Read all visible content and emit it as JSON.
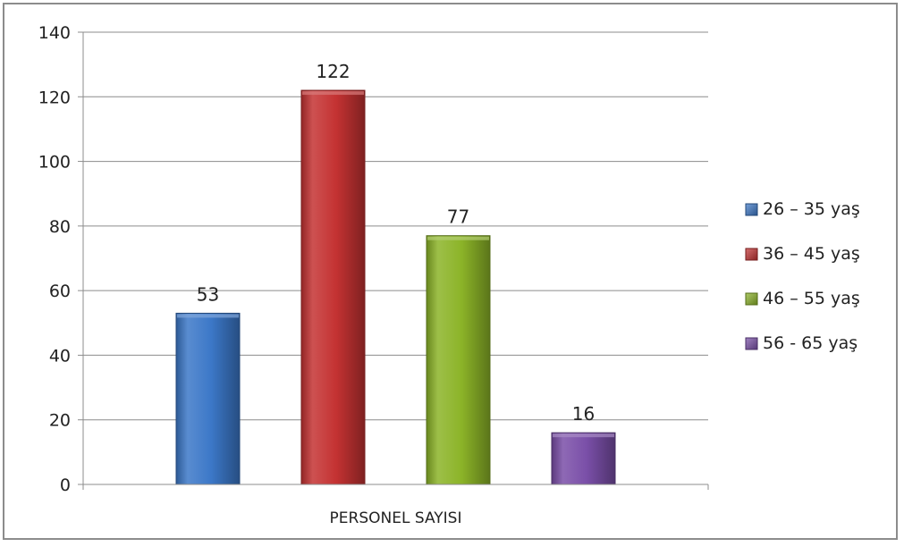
{
  "chart_data": {
    "type": "bar",
    "categories": [
      "PERSONEL SAYISI"
    ],
    "series": [
      {
        "name": "26 – 35 yaş",
        "values": [
          53
        ],
        "color": "#3c78c8"
      },
      {
        "name": "36 – 45 yaş",
        "values": [
          122
        ],
        "color": "#c43232"
      },
      {
        "name": "46 – 55 yaş",
        "values": [
          77
        ],
        "color": "#8cb428"
      },
      {
        "name": "56 - 65 yaş",
        "values": [
          16
        ],
        "color": "#7a4fa8"
      }
    ],
    "ylim": [
      0,
      140
    ],
    "yticks": [
      0,
      20,
      40,
      60,
      80,
      100,
      120,
      140
    ],
    "grid": true,
    "legend_position": "right"
  }
}
